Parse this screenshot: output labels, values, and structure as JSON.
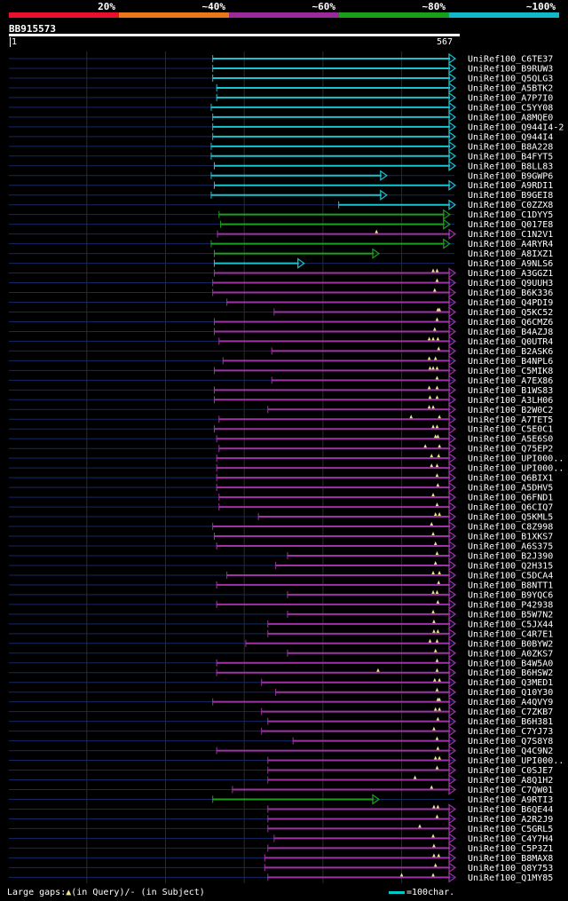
{
  "legend": {
    "segments": [
      {
        "label": "20%",
        "color": "#e8102a"
      },
      {
        "label": "~40%",
        "color": "#e87818"
      },
      {
        "label": "~60%",
        "color": "#9a2a9a"
      },
      {
        "label": "~80%",
        "color": "#18a018"
      },
      {
        "label": "~100%",
        "color": "#10b8c8"
      }
    ]
  },
  "query": {
    "id": "BB915573",
    "start": "1",
    "end": "567",
    "length": 567
  },
  "colors": {
    "cyan": "#19c3cf",
    "green": "#1ea01e",
    "purple": "#a032a8",
    "navy": "#142864",
    "gap": "#f0e68c"
  },
  "hits": [
    {
      "label": "UniRef100_C6TE37",
      "start": 260,
      "end": 567,
      "color": "cyan"
    },
    {
      "label": "UniRef100_B9RUW3",
      "start": 260,
      "end": 567,
      "color": "cyan"
    },
    {
      "label": "UniRef100_Q5QLG3",
      "start": 260,
      "end": 567,
      "color": "cyan"
    },
    {
      "label": "UniRef100_A5BTK2",
      "start": 265,
      "end": 567,
      "color": "cyan"
    },
    {
      "label": "UniRef100_A7P7I0",
      "start": 265,
      "end": 567,
      "color": "cyan"
    },
    {
      "label": "UniRef100_C5YY08",
      "start": 258,
      "end": 567,
      "color": "cyan"
    },
    {
      "label": "UniRef100_A8MQE0",
      "start": 260,
      "end": 567,
      "color": "cyan"
    },
    {
      "label": "UniRef100_Q944I4-2",
      "start": 260,
      "end": 567,
      "color": "cyan"
    },
    {
      "label": "UniRef100_Q944I4",
      "start": 260,
      "end": 567,
      "color": "cyan"
    },
    {
      "label": "UniRef100_B8A228",
      "start": 258,
      "end": 567,
      "color": "cyan"
    },
    {
      "label": "UniRef100_B4FYT5",
      "start": 258,
      "end": 567,
      "color": "cyan"
    },
    {
      "label": "UniRef100_B8LL83",
      "start": 262,
      "end": 567,
      "color": "cyan"
    },
    {
      "label": "UniRef100_B9GWP6",
      "start": 258,
      "end": 480,
      "color": "cyan"
    },
    {
      "label": "UniRef100_A9RDI1",
      "start": 262,
      "end": 567,
      "color": "cyan"
    },
    {
      "label": "UniRef100_B9GEI8",
      "start": 258,
      "end": 480,
      "color": "cyan"
    },
    {
      "label": "UniRef100_C0ZZX8",
      "start": 420,
      "end": 567,
      "color": "cyan"
    },
    {
      "label": "UniRef100_C1DYY5",
      "start": 268,
      "end": 560,
      "color": "green"
    },
    {
      "label": "UniRef100_Q017E8",
      "start": 270,
      "end": 560,
      "color": "green"
    },
    {
      "label": "UniRef100_C1N2V1",
      "start": 266,
      "end": 567,
      "color": "purple",
      "gaps": [
        468
      ]
    },
    {
      "label": "UniRef100_A4RYR4",
      "start": 258,
      "end": 560,
      "color": "green"
    },
    {
      "label": "UniRef100_A8IXZ1",
      "start": 262,
      "end": 470,
      "color": "green"
    },
    {
      "label": "UniRef100_A9NLS6",
      "start": 262,
      "end": 375,
      "color": "cyan"
    },
    {
      "label": "UniRef100_A3GGZ1",
      "start": 262,
      "end": 567,
      "color": "purple",
      "gaps": [
        540,
        545
      ]
    },
    {
      "label": "UniRef100_Q9UUH3",
      "start": 260,
      "end": 567,
      "color": "purple",
      "gaps": [
        545
      ]
    },
    {
      "label": "UniRef100_B6K336",
      "start": 260,
      "end": 567,
      "color": "purple",
      "gaps": [
        542
      ]
    },
    {
      "label": "UniRef100_Q4PDI9",
      "start": 278,
      "end": 567,
      "color": "purple"
    },
    {
      "label": "UniRef100_Q5KC52",
      "start": 338,
      "end": 567,
      "color": "purple",
      "gaps": [
        546,
        548
      ]
    },
    {
      "label": "UniRef100_Q6CMZ6",
      "start": 262,
      "end": 567,
      "color": "purple",
      "gaps": [
        545
      ]
    },
    {
      "label": "UniRef100_B4AZJ8",
      "start": 262,
      "end": 567,
      "color": "purple",
      "gaps": [
        542
      ]
    },
    {
      "label": "UniRef100_Q0UTR4",
      "start": 268,
      "end": 567,
      "color": "purple",
      "gaps": [
        535,
        540,
        546
      ]
    },
    {
      "label": "UniRef100_B2ASK6",
      "start": 335,
      "end": 567,
      "color": "purple",
      "gaps": [
        547
      ]
    },
    {
      "label": "UniRef100_B4NPL6",
      "start": 273,
      "end": 567,
      "color": "purple",
      "gaps": [
        535,
        543
      ]
    },
    {
      "label": "UniRef100_C5MIK8",
      "start": 262,
      "end": 567,
      "color": "purple",
      "gaps": [
        536,
        540,
        545
      ]
    },
    {
      "label": "UniRef100_A7EX86",
      "start": 335,
      "end": 567,
      "color": "purple",
      "gaps": [
        545
      ]
    },
    {
      "label": "UniRef100_B1WS83",
      "start": 262,
      "end": 567,
      "color": "purple",
      "gaps": [
        535,
        545
      ]
    },
    {
      "label": "UniRef100_A3LH06",
      "start": 262,
      "end": 567,
      "color": "purple",
      "gaps": [
        536,
        545
      ]
    },
    {
      "label": "UniRef100_B2W0C2",
      "start": 330,
      "end": 567,
      "color": "purple",
      "gaps": [
        535,
        540
      ]
    },
    {
      "label": "UniRef100_A7TET5",
      "start": 268,
      "end": 567,
      "color": "purple",
      "gaps": [
        512,
        548
      ]
    },
    {
      "label": "UniRef100_C5E0C1",
      "start": 262,
      "end": 567,
      "color": "purple",
      "gaps": [
        540,
        545
      ]
    },
    {
      "label": "UniRef100_A5E6S0",
      "start": 265,
      "end": 567,
      "color": "purple",
      "gaps": [
        543,
        546
      ]
    },
    {
      "label": "UniRef100_Q75EP2",
      "start": 268,
      "end": 567,
      "color": "purple",
      "gaps": [
        530,
        548
      ]
    },
    {
      "label": "UniRef100_UPI000..",
      "start": 265,
      "end": 567,
      "color": "purple",
      "gaps": [
        538,
        547
      ]
    },
    {
      "label": "UniRef100_UPI000..",
      "start": 265,
      "end": 567,
      "color": "purple",
      "gaps": [
        538,
        545
      ]
    },
    {
      "label": "UniRef100_Q6BIX1",
      "start": 265,
      "end": 567,
      "color": "purple",
      "gaps": [
        545
      ]
    },
    {
      "label": "UniRef100_A5DHV5",
      "start": 265,
      "end": 567,
      "color": "purple",
      "gaps": [
        546
      ]
    },
    {
      "label": "UniRef100_Q6FND1",
      "start": 268,
      "end": 567,
      "color": "purple",
      "gaps": [
        540
      ]
    },
    {
      "label": "UniRef100_Q6CIQ7",
      "start": 268,
      "end": 567,
      "color": "purple",
      "gaps": [
        545
      ]
    },
    {
      "label": "UniRef100_Q5KML5",
      "start": 318,
      "end": 567,
      "color": "purple",
      "gaps": [
        543,
        548
      ]
    },
    {
      "label": "UniRef100_C8Z998",
      "start": 260,
      "end": 567,
      "color": "purple",
      "gaps": [
        538
      ]
    },
    {
      "label": "UniRef100_B1XKS7",
      "start": 262,
      "end": 567,
      "color": "purple",
      "gaps": [
        540
      ]
    },
    {
      "label": "UniRef100_A6S375",
      "start": 265,
      "end": 567,
      "color": "purple",
      "gaps": [
        543
      ]
    },
    {
      "label": "UniRef100_B2J390",
      "start": 355,
      "end": 567,
      "color": "purple",
      "gaps": [
        545
      ]
    },
    {
      "label": "UniRef100_Q2H315",
      "start": 340,
      "end": 567,
      "color": "purple",
      "gaps": [
        543
      ]
    },
    {
      "label": "UniRef100_C5DCA4",
      "start": 278,
      "end": 567,
      "color": "purple",
      "gaps": [
        540,
        548
      ]
    },
    {
      "label": "UniRef100_B8NTT1",
      "start": 265,
      "end": 567,
      "color": "purple",
      "gaps": [
        547
      ]
    },
    {
      "label": "UniRef100_B9YQC6",
      "start": 355,
      "end": 567,
      "color": "purple",
      "gaps": [
        540,
        545
      ]
    },
    {
      "label": "UniRef100_P42938",
      "start": 265,
      "end": 567,
      "color": "purple",
      "gaps": [
        546
      ]
    },
    {
      "label": "UniRef100_B5W7N2",
      "start": 355,
      "end": 567,
      "color": "purple",
      "gaps": [
        540
      ]
    },
    {
      "label": "UniRef100_C5JX44",
      "start": 330,
      "end": 567,
      "color": "purple",
      "gaps": [
        541
      ]
    },
    {
      "label": "UniRef100_C4R7E1",
      "start": 330,
      "end": 567,
      "color": "purple",
      "gaps": [
        541,
        546
      ]
    },
    {
      "label": "UniRef100_B0BYW2",
      "start": 302,
      "end": 567,
      "color": "purple",
      "gaps": [
        536,
        545
      ]
    },
    {
      "label": "UniRef100_A0ZKS7",
      "start": 355,
      "end": 567,
      "color": "purple",
      "gaps": [
        543
      ]
    },
    {
      "label": "UniRef100_B4W5A0",
      "start": 265,
      "end": 567,
      "color": "purple",
      "gaps": [
        545
      ]
    },
    {
      "label": "UniRef100_B6HSW2",
      "start": 265,
      "end": 567,
      "color": "purple",
      "gaps": [
        470,
        545
      ]
    },
    {
      "label": "UniRef100_Q3MED1",
      "start": 322,
      "end": 567,
      "color": "purple",
      "gaps": [
        542,
        548
      ]
    },
    {
      "label": "UniRef100_Q10Y30",
      "start": 340,
      "end": 567,
      "color": "purple",
      "gaps": [
        545
      ]
    },
    {
      "label": "UniRef100_A4QVY9",
      "start": 260,
      "end": 567,
      "color": "purple",
      "gaps": [
        546,
        548
      ]
    },
    {
      "label": "UniRef100_C7ZKB7",
      "start": 322,
      "end": 567,
      "color": "purple",
      "gaps": [
        543,
        548
      ]
    },
    {
      "label": "UniRef100_B6H381",
      "start": 330,
      "end": 567,
      "color": "purple",
      "gaps": [
        546
      ]
    },
    {
      "label": "UniRef100_C7YJ73",
      "start": 322,
      "end": 567,
      "color": "purple",
      "gaps": [
        541
      ]
    },
    {
      "label": "UniRef100_Q7S8Y8",
      "start": 362,
      "end": 567,
      "color": "purple",
      "gaps": [
        545
      ]
    },
    {
      "label": "UniRef100_Q4C9N2",
      "start": 265,
      "end": 567,
      "color": "purple",
      "gaps": [
        546
      ]
    },
    {
      "label": "UniRef100_UPI000..",
      "start": 330,
      "end": 567,
      "color": "purple",
      "gaps": [
        543,
        548
      ]
    },
    {
      "label": "UniRef100_C0SJE7",
      "start": 330,
      "end": 567,
      "color": "purple",
      "gaps": [
        545
      ]
    },
    {
      "label": "UniRef100_A8Q1H2",
      "start": 330,
      "end": 567,
      "color": "purple",
      "gaps": [
        517
      ]
    },
    {
      "label": "UniRef100_C7QW01",
      "start": 285,
      "end": 567,
      "color": "purple",
      "gaps": [
        538
      ]
    },
    {
      "label": "UniRef100_A9RTI3",
      "start": 260,
      "end": 470,
      "color": "green"
    },
    {
      "label": "UniRef100_B6QE44",
      "start": 330,
      "end": 567,
      "color": "purple",
      "gaps": [
        541,
        546
      ]
    },
    {
      "label": "UniRef100_A2R2J9",
      "start": 330,
      "end": 567,
      "color": "purple",
      "gaps": [
        545
      ]
    },
    {
      "label": "UniRef100_C5GRL5",
      "start": 330,
      "end": 567,
      "color": "purple",
      "gaps": [
        523
      ]
    },
    {
      "label": "UniRef100_C4Y7H4",
      "start": 338,
      "end": 567,
      "color": "purple",
      "gaps": [
        540
      ]
    },
    {
      "label": "UniRef100_C5P3Z1",
      "start": 330,
      "end": 567,
      "color": "purple",
      "gaps": [
        541
      ]
    },
    {
      "label": "UniRef100_B8MAX8",
      "start": 326,
      "end": 567,
      "color": "purple",
      "gaps": [
        541,
        547
      ]
    },
    {
      "label": "UniRef100_Q8Y753",
      "start": 326,
      "end": 567,
      "color": "purple",
      "gaps": [
        543
      ]
    },
    {
      "label": "UniRef100_Q1MY85",
      "start": 330,
      "end": 567,
      "color": "purple",
      "gaps": [
        500,
        540
      ]
    }
  ],
  "footer": {
    "gaps_label": "Large gaps:",
    "triangle_symbol": "▲",
    "in_query": "(in Query)/",
    "dash_symbol": "-",
    "in_subject": " (in Subject)",
    "scale_label": "=100char."
  }
}
